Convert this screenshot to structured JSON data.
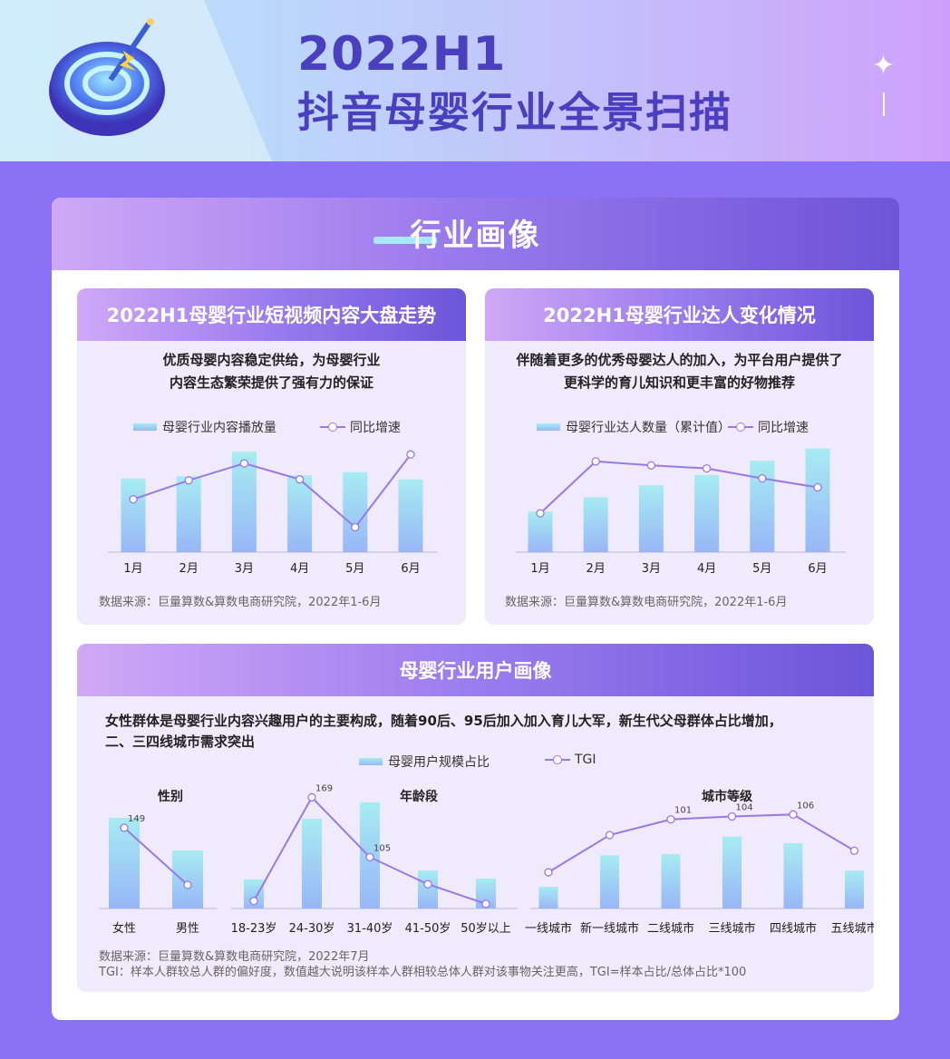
{
  "header": {
    "title_line1": "2022H1",
    "title_line2": "抖音母婴行业全景扫描"
  },
  "section": {
    "title": "行业画像"
  },
  "colors": {
    "accent": "#4a3fbf",
    "bar_top": "#a6ecf2",
    "bar_bottom": "#98b6f7",
    "line": "#9a78e8"
  },
  "card1": {
    "title": "2022H1母婴行业短视频内容大盘走势",
    "desc_line1": "优质母婴内容稳定供给，为母婴行业",
    "desc_line2": "内容生态繁荣提供了强有力的保证",
    "legend_bar": "母婴行业内容播放量",
    "legend_line": "同比增速",
    "source": "数据来源：巨量算数&算数电商研究院，2022年1-6月"
  },
  "card2": {
    "title": "2022H1母婴行业达人变化情况",
    "desc_line1": "伴随着更多的优秀母婴达人的加入，为平台用户提供了",
    "desc_line2": "更科学的育儿知识和更丰富的好物推荐",
    "legend_bar": "母婴行业达人数量（累计值）",
    "legend_line": "同比增速",
    "source": "数据来源：巨量算数&算数电商研究院，2022年1-6月"
  },
  "card3": {
    "title": "母婴行业用户画像",
    "desc_line1": "女性群体是母婴行业内容兴趣用户的主要构成，随着90后、95后加入加入育儿大军，新生代父母群体占比增加，",
    "desc_line2": "二、三四线城市需求突出",
    "legend_bar": "母婴用户规模占比",
    "legend_line": "TGI",
    "source_line1": "数据来源：巨量算数&算数电商研究院，2022年7月",
    "source_line2": "TGI：样本人群较总人群的偏好度，数值越大说明该样本人群相较总体人群对该事物关注更高，TGI=样本占比/总体占比*100"
  },
  "chart_data": [
    {
      "type": "bar",
      "title": "2022H1母婴行业短视频内容大盘走势",
      "categories": [
        "1月",
        "2月",
        "3月",
        "4月",
        "5月",
        "6月"
      ],
      "series": [
        {
          "name": "母婴行业内容播放量",
          "kind": "bar",
          "values": [
            72,
            74,
            98,
            75,
            78,
            71
          ]
        },
        {
          "name": "同比增速",
          "kind": "line",
          "values": [
            53,
            72,
            89,
            73,
            25,
            98
          ]
        }
      ],
      "ylim": [
        0,
        100
      ],
      "grid": false,
      "legend": "top"
    },
    {
      "type": "bar",
      "title": "2022H1母婴行业达人变化情况",
      "categories": [
        "1月",
        "2月",
        "3月",
        "4月",
        "5月",
        "6月"
      ],
      "series": [
        {
          "name": "母婴行业达人数量（累计值）",
          "kind": "bar",
          "values": [
            40,
            54,
            66,
            76,
            90,
            102
          ]
        },
        {
          "name": "同比增速",
          "kind": "line",
          "values": [
            39,
            91,
            87,
            84,
            74,
            65
          ]
        }
      ],
      "ylim": [
        0,
        100
      ],
      "grid": false,
      "legend": "top"
    },
    {
      "type": "bar",
      "title": "性别",
      "categories": [
        "女性",
        "男性"
      ],
      "series": [
        {
          "name": "母婴用户规模占比",
          "kind": "bar",
          "values": [
            100,
            64
          ]
        },
        {
          "name": "TGI",
          "kind": "line",
          "values": [
            149,
            86
          ]
        }
      ],
      "data_labels": [
        "149",
        ""
      ]
    },
    {
      "type": "bar",
      "title": "年龄段",
      "categories": [
        "18-23岁",
        "24-30岁",
        "31-40岁",
        "41-50岁",
        "50岁以上"
      ],
      "series": [
        {
          "name": "母婴用户规模占比",
          "kind": "bar",
          "values": [
            32,
            99,
            117,
            42,
            33
          ]
        },
        {
          "name": "TGI",
          "kind": "line",
          "values": [
            58,
            169,
            105,
            76,
            55
          ]
        }
      ],
      "data_labels": [
        "",
        "169",
        "105",
        "",
        ""
      ]
    },
    {
      "type": "bar",
      "title": "城市等级",
      "categories": [
        "一线城市",
        "新一线城市",
        "二线城市",
        "三线城市",
        "四线城市",
        "五线城市"
      ],
      "series": [
        {
          "name": "母婴用户规模占比",
          "kind": "bar",
          "values": [
            20,
            49,
            50,
            66,
            60,
            35
          ]
        },
        {
          "name": "TGI",
          "kind": "line",
          "values": [
            47,
            85,
            101,
            104,
            106,
            69
          ]
        }
      ],
      "data_labels": [
        "",
        "",
        "101",
        "104",
        "106",
        ""
      ]
    }
  ]
}
